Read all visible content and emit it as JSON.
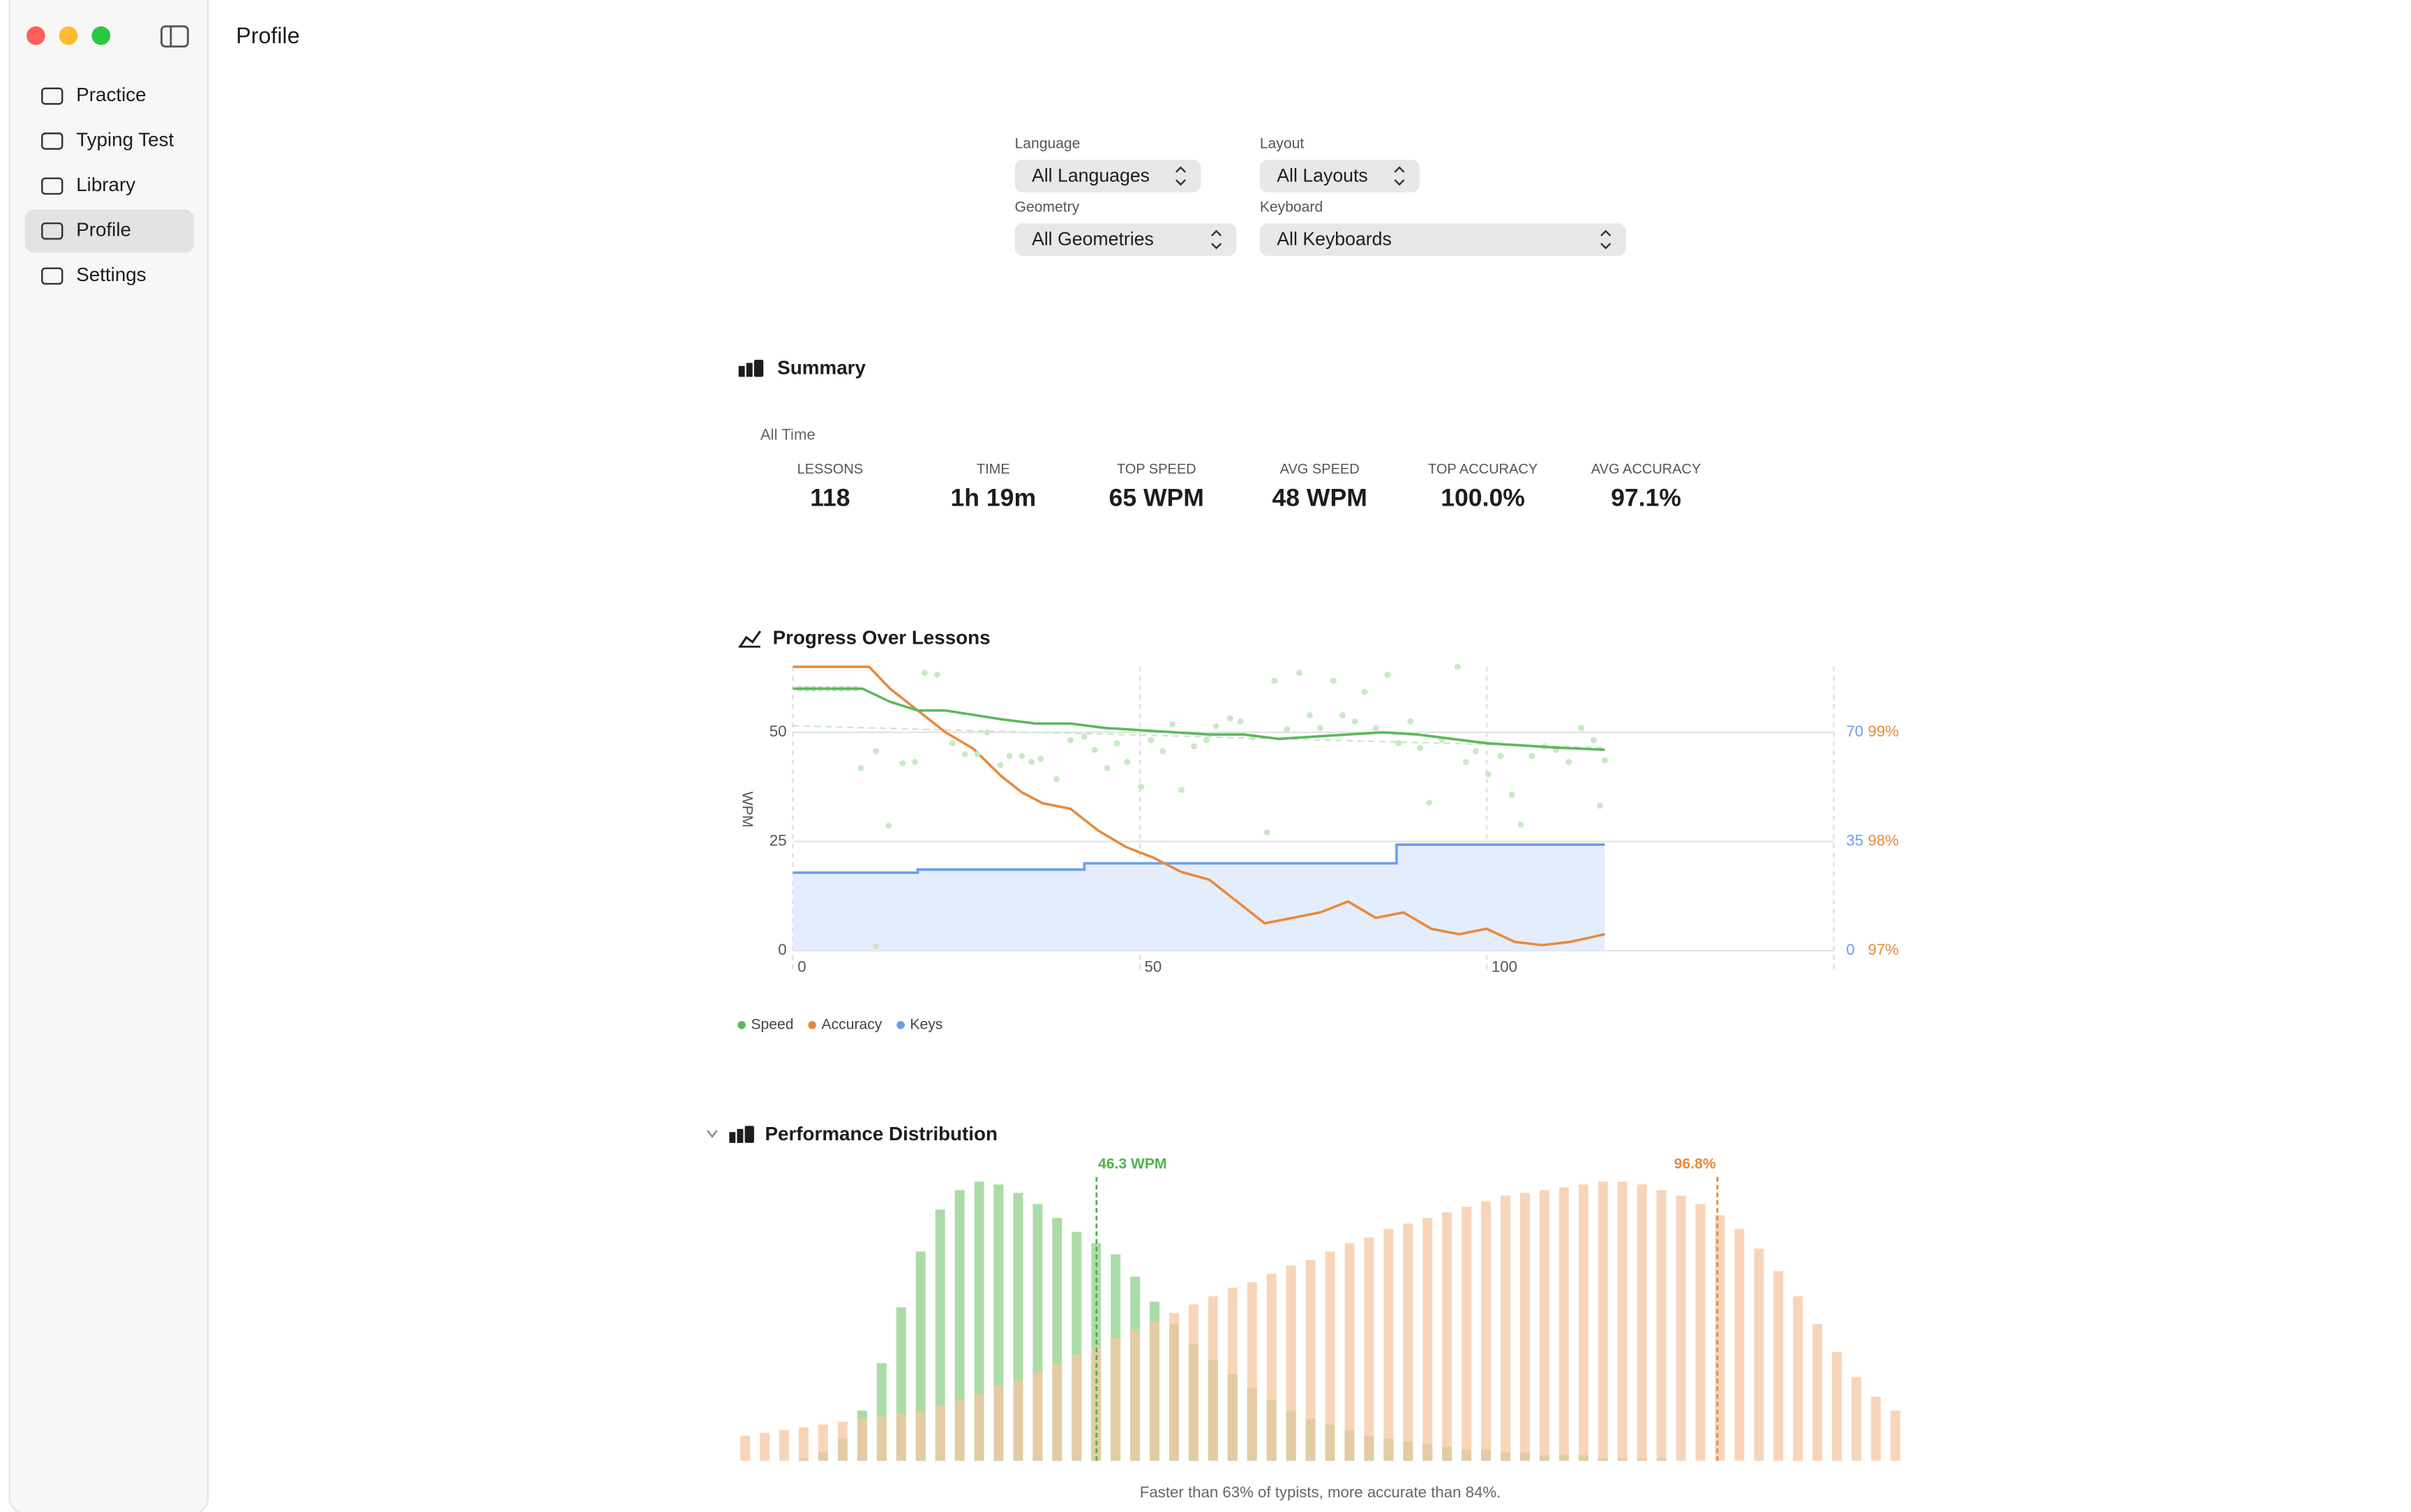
{
  "window": {
    "title": "Profile"
  },
  "sidebar": {
    "items": [
      "Practice",
      "Typing Test",
      "Library",
      "Profile",
      "Settings"
    ],
    "selected": 3
  },
  "filters": [
    {
      "label": "Language",
      "value": "All Languages"
    },
    {
      "label": "Layout",
      "value": "All Layouts"
    },
    {
      "label": "Geometry",
      "value": "All Geometries"
    },
    {
      "label": "Keyboard",
      "value": "All Keyboards"
    }
  ],
  "summary": {
    "title": "Summary",
    "period": "All Time",
    "stats": [
      {
        "label": "LESSONS",
        "value": "118"
      },
      {
        "label": "TIME",
        "value": "1h 19m"
      },
      {
        "label": "TOP SPEED",
        "value": "65 WPM"
      },
      {
        "label": "AVG SPEED",
        "value": "48 WPM"
      },
      {
        "label": "TOP ACCURACY",
        "value": "100.0%"
      },
      {
        "label": "AVG ACCURACY",
        "value": "97.1%"
      }
    ]
  },
  "chart_data": [
    {
      "type": "line",
      "title": "Progress Over Lessons",
      "y_label": "WPM",
      "xlim": [
        0,
        150
      ],
      "xticks": [
        0,
        50,
        100
      ],
      "ylim": [
        0,
        65
      ],
      "yticks": [
        0,
        25,
        50
      ],
      "y2lim": [
        0,
        91
      ],
      "y2ticks": [
        0,
        35,
        70
      ],
      "y2color": "#6b9ef0",
      "y3lim": [
        97,
        99.6
      ],
      "y3ticks": [
        {
          "value": 97,
          "label": "97%"
        },
        {
          "value": 98,
          "label": "98%"
        },
        {
          "value": 99,
          "label": "99%"
        }
      ],
      "y3color": "#e8893a",
      "grid": true,
      "series": [
        {
          "name": "Speed",
          "color": "#5cb85c",
          "scatter_color": "#c9e9c5",
          "x": [
            0,
            10,
            14,
            18,
            22,
            26,
            30,
            35,
            40,
            45,
            50,
            55,
            60,
            65,
            70,
            75,
            80,
            85,
            90,
            95,
            100,
            105,
            110,
            117
          ],
          "values": [
            60,
            60,
            57,
            55,
            55,
            54,
            53,
            52,
            52,
            51,
            50.5,
            50,
            49.5,
            49.5,
            48.5,
            49,
            49.5,
            50,
            49.5,
            48.5,
            47.5,
            47,
            46.5,
            46
          ],
          "scatter_x": [
            1,
            2,
            3,
            4,
            5,
            6,
            7,
            8,
            9,
            9.8,
            12,
            13.8,
            12,
            15.8,
            17.6,
            19,
            20.8,
            23,
            24.8,
            26.6,
            28,
            29.9,
            31.2,
            33,
            34.4,
            35.7,
            38,
            40,
            42,
            43.5,
            45.3,
            46.7,
            48.2,
            50.2,
            51.6,
            53.3,
            54.7,
            56,
            57.8,
            59.6,
            61,
            63,
            64.5,
            66.3,
            68.3,
            69.4,
            71.2,
            73,
            74.5,
            76,
            77.9,
            79.2,
            81,
            82.4,
            84,
            85.7,
            87.3,
            89,
            90.4,
            91.7,
            93.5,
            95.8,
            97,
            98.4,
            100.2,
            102,
            103.6,
            104.9,
            106.5,
            108.3,
            110,
            111.8,
            113.6,
            115.4,
            116.3,
            117
          ],
          "scatter_values": [
            60,
            60,
            60,
            60,
            60,
            60,
            60,
            60,
            60,
            41.8,
            45.7,
            28.6,
            1,
            42.9,
            43.2,
            63.6,
            63.2,
            47.5,
            45,
            45,
            50,
            42.5,
            44.6,
            44.6,
            43.2,
            43.9,
            39.3,
            48.2,
            49,
            46,
            41.8,
            47.5,
            43.2,
            37.5,
            48.2,
            45.7,
            51.8,
            36.8,
            46.8,
            48.2,
            51.4,
            53.2,
            52.5,
            48.9,
            27.1,
            61.8,
            50.7,
            63.6,
            53.9,
            51,
            61.8,
            53.9,
            52.5,
            59.3,
            51,
            63.2,
            47.5,
            52.5,
            46.4,
            33.9,
            48.2,
            65,
            43.2,
            45.7,
            40.4,
            44.6,
            35.7,
            28.9,
            44.6,
            46.8,
            46,
            43.2,
            51,
            48.2,
            33.2,
            43.6
          ],
          "trend_x": [
            0,
            117
          ],
          "trend_values": [
            51.5,
            46.5
          ]
        },
        {
          "name": "Accuracy",
          "color": "#e8893a",
          "axis": "y3",
          "x": [
            0,
            11,
            14,
            18,
            22,
            26,
            30,
            33,
            36,
            40,
            44,
            48,
            52,
            56,
            60,
            64,
            68,
            72,
            76,
            80,
            84,
            88,
            92,
            96,
            100,
            104,
            108,
            112,
            117
          ],
          "values": [
            99.6,
            99.6,
            99.4,
            99.2,
            99.0,
            98.85,
            98.6,
            98.45,
            98.35,
            98.3,
            98.1,
            97.95,
            97.85,
            97.72,
            97.65,
            97.45,
            97.25,
            97.3,
            97.35,
            97.45,
            97.3,
            97.35,
            97.2,
            97.15,
            97.2,
            97.08,
            97.05,
            97.08,
            97.15
          ]
        },
        {
          "name": "Keys",
          "color": "#6b9ef0",
          "fill": "#e4edfc",
          "axis": "y2",
          "x": [
            0,
            18,
            18,
            42,
            42,
            87,
            87,
            117
          ],
          "values": [
            25,
            25,
            26,
            26,
            28,
            28,
            34,
            34
          ]
        }
      ]
    },
    {
      "type": "distribution",
      "title": "Performance Distribution",
      "ylim": [
        0,
        100
      ],
      "series": [
        {
          "color": "#8fd08a",
          "xlim": [
            0,
            150
          ],
          "values": [
            0,
            0,
            0,
            1,
            3,
            8,
            18,
            35,
            55,
            75,
            90,
            97,
            100,
            99,
            96,
            92,
            87,
            82,
            78,
            74,
            66,
            57,
            49,
            42,
            36,
            31,
            26,
            22,
            18,
            15,
            13,
            11,
            9,
            8,
            7,
            6,
            5,
            4,
            4,
            3,
            3,
            2,
            2,
            2,
            1,
            1,
            1,
            1,
            0,
            0,
            0,
            0,
            0,
            0,
            0,
            0,
            0,
            0,
            0,
            0
          ],
          "marker": {
            "value": 46.3,
            "label": "46.3 WPM",
            "color": "#4fb34a"
          }
        },
        {
          "color": "#f5c7a2",
          "xlim": [
            90,
            98.1
          ],
          "values": [
            9,
            10,
            11,
            12,
            13,
            14,
            15,
            16,
            17,
            18,
            20,
            22,
            24,
            27,
            29,
            32,
            35,
            38,
            41,
            44,
            47,
            50,
            53,
            56,
            59,
            62,
            64,
            67,
            70,
            72,
            75,
            78,
            80,
            83,
            85,
            87,
            89,
            91,
            93,
            95,
            96,
            97,
            98,
            99,
            100,
            100,
            99,
            97,
            95,
            92,
            88,
            83,
            76,
            68,
            59,
            49,
            39,
            30,
            23,
            18
          ],
          "marker": {
            "value": 96.8,
            "label": "96.8%",
            "color": "#e8893a"
          }
        }
      ],
      "caption": "Faster than 63% of typists, more accurate than 84%."
    }
  ]
}
